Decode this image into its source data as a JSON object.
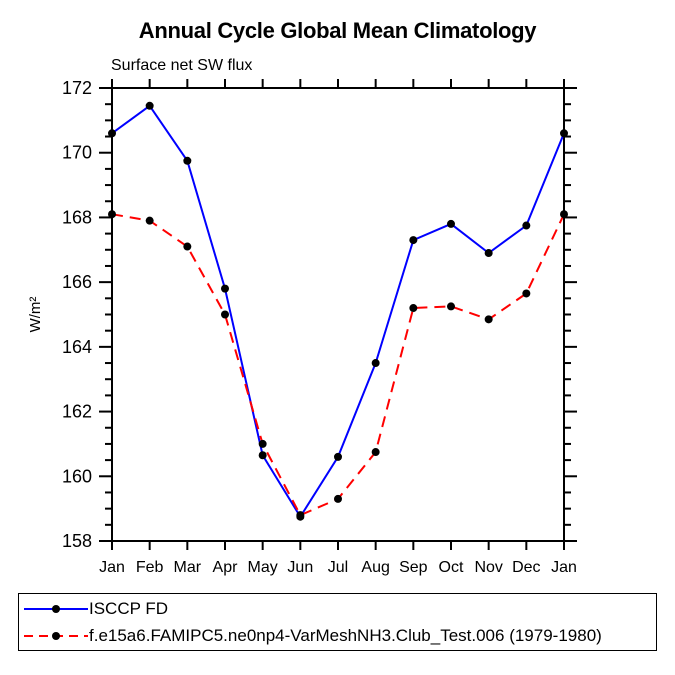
{
  "page": {
    "background_color": "#ffffff"
  },
  "chart_data": {
    "type": "line",
    "title": "Annual Cycle Global Mean Climatology",
    "subtitle": "Surface net SW flux",
    "ylabel": "W/m²",
    "xlabel": "",
    "x_categories": [
      "Jan",
      "Feb",
      "Mar",
      "Apr",
      "May",
      "Jun",
      "Jul",
      "Aug",
      "Sep",
      "Oct",
      "Nov",
      "Dec",
      "Jan"
    ],
    "ylim": [
      158,
      172
    ],
    "ytick_major_step": 2,
    "ytick_minor_step": 0.5,
    "ytick_labels": [
      "158",
      "160",
      "162",
      "164",
      "166",
      "168",
      "170",
      "172"
    ],
    "grid": false,
    "axis_color": "#000000",
    "marker_color": "#000000",
    "legend_position": "bottom-left-box",
    "series": [
      {
        "name": "ISCCP FD",
        "color": "#0000FF",
        "line_style": "solid",
        "marker": "filled-circle",
        "values": [
          170.6,
          171.45,
          169.75,
          165.8,
          160.65,
          158.75,
          160.6,
          163.5,
          167.3,
          167.8,
          166.9,
          167.75,
          170.6
        ]
      },
      {
        "name": "f.e15a6.FAMIPC5.ne0np4-VarMeshNH3.Club_Test.006 (1979-1980)",
        "color": "#FF0000",
        "line_style": "dashed",
        "marker": "filled-circle",
        "values": [
          168.1,
          167.9,
          167.1,
          165.0,
          161.0,
          158.8,
          159.3,
          160.75,
          165.2,
          165.25,
          164.85,
          165.65,
          168.1
        ]
      }
    ]
  }
}
